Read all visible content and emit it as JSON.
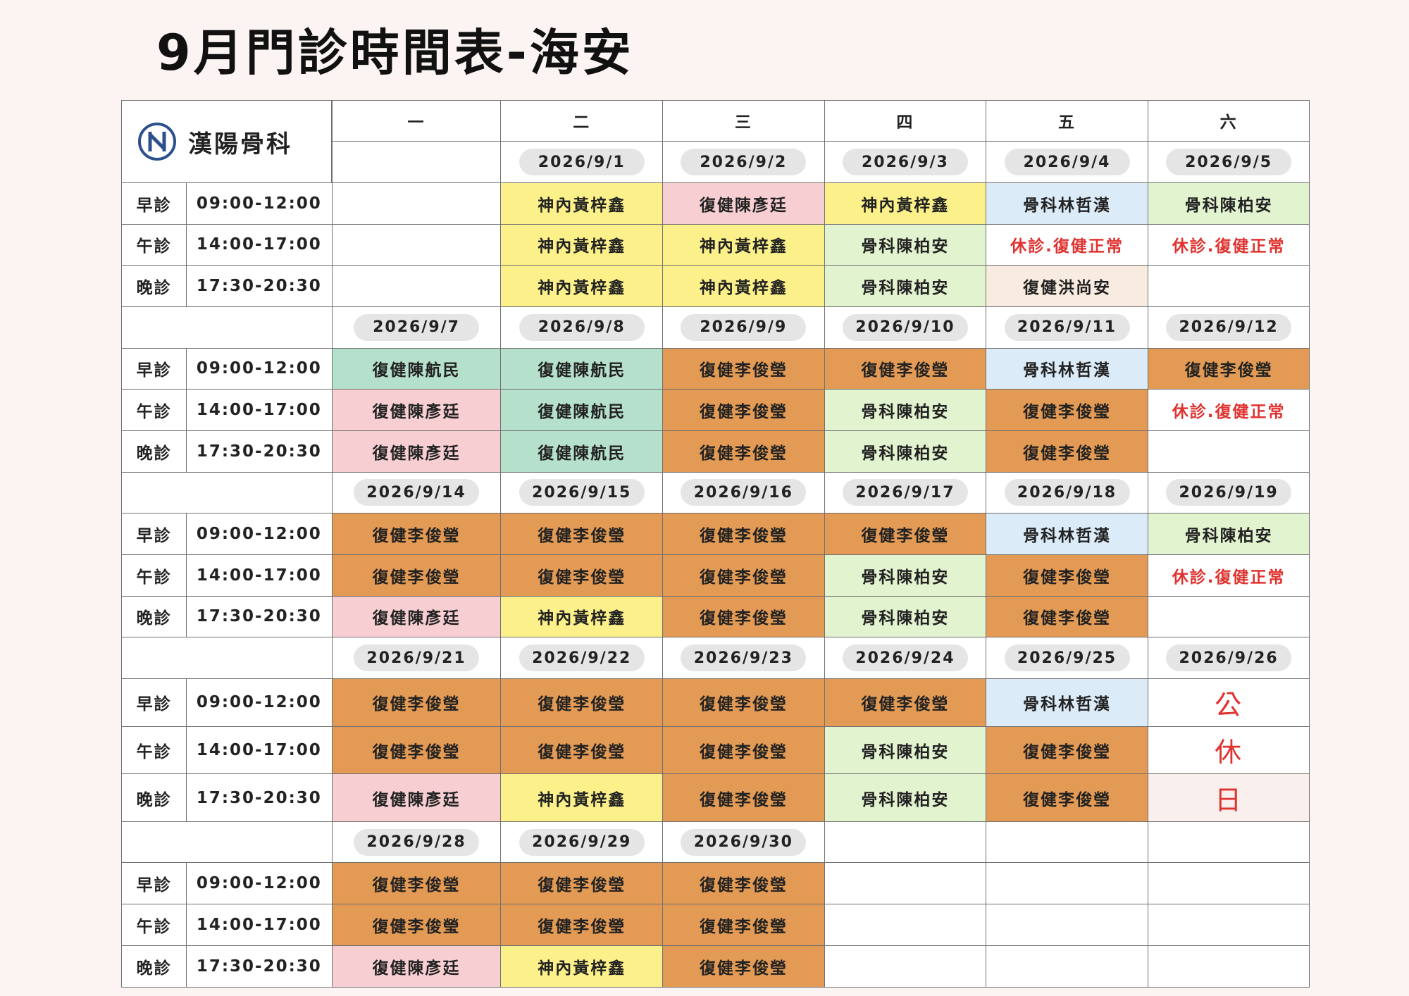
{
  "header": {
    "title": "9月門診時間表-海安",
    "logo_text": "漢陽骨科"
  },
  "weekdays": [
    "一",
    "二",
    "三",
    "四",
    "五",
    "六"
  ],
  "weeks": [
    {
      "dates": [
        null,
        "2026/9/1",
        "2026/9/2",
        "2026/9/3",
        "2026/9/4",
        "2026/9/5"
      ],
      "sessions": [
        {
          "name": "早診",
          "time": "09:00-12:00",
          "cells": [
            null,
            {
              "text": "神內黃梓鑫",
              "color": "#fbf08a"
            },
            {
              "text": "復健陳彥廷",
              "color": "#f7cfd2"
            },
            {
              "text": "神內黃梓鑫",
              "color": "#fbf08a"
            },
            {
              "text": "骨科林哲漢",
              "color": "#dcebf8"
            },
            {
              "text": "骨科陳柏安",
              "color": "#e2f3cf"
            }
          ]
        },
        {
          "name": "午診",
          "time": "14:00-17:00",
          "cells": [
            null,
            {
              "text": "神內黃梓鑫",
              "color": "#fbf08a"
            },
            {
              "text": "神內黃梓鑫",
              "color": "#fbf08a"
            },
            {
              "text": "骨科陳柏安",
              "color": "#e2f3cf"
            },
            {
              "text": "休診.復健正常",
              "color": "#ffffff",
              "text_color": "#e0322f"
            },
            {
              "text": "休診.復健正常",
              "color": "#ffffff",
              "text_color": "#e0322f"
            }
          ]
        },
        {
          "name": "晚診",
          "time": "17:30-20:30",
          "cells": [
            null,
            {
              "text": "神內黃梓鑫",
              "color": "#fbf08a"
            },
            {
              "text": "神內黃梓鑫",
              "color": "#fbf08a"
            },
            {
              "text": "骨科陳柏安",
              "color": "#e2f3cf"
            },
            {
              "text": "復健洪尚安",
              "color": "#f8ebdf"
            },
            null
          ]
        }
      ]
    },
    {
      "dates": [
        "2026/9/7",
        "2026/9/8",
        "2026/9/9",
        "2026/9/10",
        "2026/9/11",
        "2026/9/12"
      ],
      "sessions": [
        {
          "name": "早診",
          "time": "09:00-12:00",
          "cells": [
            {
              "text": "復健陳航民",
              "color": "#b5e0cb"
            },
            {
              "text": "復健陳航民",
              "color": "#b5e0cb"
            },
            {
              "text": "復健李俊瑩",
              "color": "#e39a54"
            },
            {
              "text": "復健李俊瑩",
              "color": "#e39a54"
            },
            {
              "text": "骨科林哲漢",
              "color": "#dcebf8"
            },
            {
              "text": "復健李俊瑩",
              "color": "#e39a54"
            }
          ]
        },
        {
          "name": "午診",
          "time": "14:00-17:00",
          "cells": [
            {
              "text": "復健陳彥廷",
              "color": "#f7cfd2"
            },
            {
              "text": "復健陳航民",
              "color": "#b5e0cb"
            },
            {
              "text": "復健李俊瑩",
              "color": "#e39a54"
            },
            {
              "text": "骨科陳柏安",
              "color": "#e2f3cf"
            },
            {
              "text": "復健李俊瑩",
              "color": "#e39a54"
            },
            {
              "text": "休診.復健正常",
              "color": "#ffffff",
              "text_color": "#e0322f"
            }
          ]
        },
        {
          "name": "晚診",
          "time": "17:30-20:30",
          "cells": [
            {
              "text": "復健陳彥廷",
              "color": "#f7cfd2"
            },
            {
              "text": "復健陳航民",
              "color": "#b5e0cb"
            },
            {
              "text": "復健李俊瑩",
              "color": "#e39a54"
            },
            {
              "text": "骨科陳柏安",
              "color": "#e2f3cf"
            },
            {
              "text": "復健李俊瑩",
              "color": "#e39a54"
            },
            null
          ]
        }
      ]
    },
    {
      "dates": [
        "2026/9/14",
        "2026/9/15",
        "2026/9/16",
        "2026/9/17",
        "2026/9/18",
        "2026/9/19"
      ],
      "sessions": [
        {
          "name": "早診",
          "time": "09:00-12:00",
          "cells": [
            {
              "text": "復健李俊瑩",
              "color": "#e39a54"
            },
            {
              "text": "復健李俊瑩",
              "color": "#e39a54"
            },
            {
              "text": "復健李俊瑩",
              "color": "#e39a54"
            },
            {
              "text": "復健李俊瑩",
              "color": "#e39a54"
            },
            {
              "text": "骨科林哲漢",
              "color": "#dcebf8"
            },
            {
              "text": "骨科陳柏安",
              "color": "#e2f3cf"
            }
          ]
        },
        {
          "name": "午診",
          "time": "14:00-17:00",
          "cells": [
            {
              "text": "復健李俊瑩",
              "color": "#e39a54"
            },
            {
              "text": "復健李俊瑩",
              "color": "#e39a54"
            },
            {
              "text": "復健李俊瑩",
              "color": "#e39a54"
            },
            {
              "text": "骨科陳柏安",
              "color": "#e2f3cf"
            },
            {
              "text": "復健李俊瑩",
              "color": "#e39a54"
            },
            {
              "text": "休診.復健正常",
              "color": "#ffffff",
              "text_color": "#e0322f"
            }
          ]
        },
        {
          "name": "晚診",
          "time": "17:30-20:30",
          "cells": [
            {
              "text": "復健陳彥廷",
              "color": "#f7cfd2"
            },
            {
              "text": "神內黃梓鑫",
              "color": "#fbf08a"
            },
            {
              "text": "復健李俊瑩",
              "color": "#e39a54"
            },
            {
              "text": "骨科陳柏安",
              "color": "#e2f3cf"
            },
            {
              "text": "復健李俊瑩",
              "color": "#e39a54"
            },
            null
          ]
        }
      ]
    },
    {
      "dates": [
        "2026/9/21",
        "2026/9/22",
        "2026/9/23",
        "2026/9/24",
        "2026/9/25",
        "2026/9/26"
      ],
      "sessions": [
        {
          "name": "早診",
          "time": "09:00-12:00",
          "cells": [
            {
              "text": "復健李俊瑩",
              "color": "#e39a54"
            },
            {
              "text": "復健李俊瑩",
              "color": "#e39a54"
            },
            {
              "text": "復健李俊瑩",
              "color": "#e39a54"
            },
            {
              "text": "復健李俊瑩",
              "color": "#e39a54"
            },
            {
              "text": "骨科林哲漢",
              "color": "#dcebf8"
            },
            {
              "text": "公",
              "color": "#ffffff",
              "text_color": "#e0322f"
            }
          ]
        },
        {
          "name": "午診",
          "time": "14:00-17:00",
          "cells": [
            {
              "text": "復健李俊瑩",
              "color": "#e39a54"
            },
            {
              "text": "復健李俊瑩",
              "color": "#e39a54"
            },
            {
              "text": "復健李俊瑩",
              "color": "#e39a54"
            },
            {
              "text": "骨科陳柏安",
              "color": "#e2f3cf"
            },
            {
              "text": "復健李俊瑩",
              "color": "#e39a54"
            },
            {
              "text": "休",
              "color": "#ffffff",
              "text_color": "#e0322f"
            }
          ]
        },
        {
          "name": "晚診",
          "time": "17:30-20:30",
          "cells": [
            {
              "text": "復健陳彥廷",
              "color": "#f7cfd2"
            },
            {
              "text": "神內黃梓鑫",
              "color": "#fbf08a"
            },
            {
              "text": "復健李俊瑩",
              "color": "#e39a54"
            },
            {
              "text": "骨科陳柏安",
              "color": "#e2f3cf"
            },
            {
              "text": "復健李俊瑩",
              "color": "#e39a54"
            },
            {
              "text": "日",
              "color": "#f9efec",
              "text_color": "#e0322f"
            }
          ]
        }
      ]
    },
    {
      "dates": [
        "2026/9/28",
        "2026/9/29",
        "2026/9/30",
        null,
        null,
        null
      ],
      "sessions": [
        {
          "name": "早診",
          "time": "09:00-12:00",
          "cells": [
            {
              "text": "復健李俊瑩",
              "color": "#e39a54"
            },
            {
              "text": "復健李俊瑩",
              "color": "#e39a54"
            },
            {
              "text": "復健李俊瑩",
              "color": "#e39a54"
            },
            null,
            null,
            null
          ]
        },
        {
          "name": "午診",
          "time": "14:00-17:00",
          "cells": [
            {
              "text": "復健李俊瑩",
              "color": "#e39a54"
            },
            {
              "text": "復健李俊瑩",
              "color": "#e39a54"
            },
            {
              "text": "復健李俊瑩",
              "color": "#e39a54"
            },
            null,
            null,
            null
          ]
        },
        {
          "name": "晚診",
          "time": "17:30-20:30",
          "cells": [
            {
              "text": "復健陳彥廷",
              "color": "#f7cfd2"
            },
            {
              "text": "神內黃梓鑫",
              "color": "#fbf08a"
            },
            {
              "text": "復健李俊瑩",
              "color": "#e39a54"
            },
            null,
            null,
            null
          ]
        }
      ]
    }
  ]
}
